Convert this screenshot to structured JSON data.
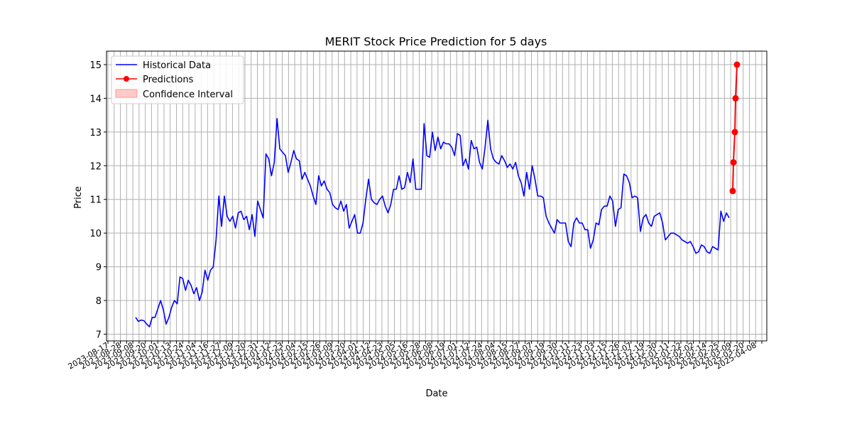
{
  "chart_data": {
    "type": "line",
    "title": "MERIT Stock Price Prediction for 5 days",
    "xlabel": "Date",
    "ylabel": "Price",
    "ylim": [
      6.8,
      15.4
    ],
    "yticks": [
      7,
      8,
      9,
      10,
      11,
      12,
      13,
      14,
      15
    ],
    "grid": true,
    "legend_position": "top-left",
    "x_tick_labels_note": "dense overlapping rotated date labels, 2023-08 through 2025-04",
    "x_first_tick": "2023-08-17",
    "x_last_tick": "2025-04-08",
    "series": [
      {
        "name": "Historical Data",
        "color": "#0000ff",
        "style": "line",
        "values": [
          7.5,
          7.38,
          7.42,
          7.4,
          7.3,
          7.22,
          7.5,
          7.5,
          7.75,
          8.0,
          7.72,
          7.3,
          7.5,
          7.8,
          8.0,
          7.9,
          8.7,
          8.65,
          8.3,
          8.6,
          8.45,
          8.2,
          8.38,
          8.0,
          8.25,
          8.9,
          8.6,
          8.9,
          9.0,
          9.8,
          11.1,
          10.2,
          11.1,
          10.5,
          10.35,
          10.5,
          10.15,
          10.6,
          10.65,
          10.4,
          10.5,
          10.1,
          10.55,
          9.9,
          10.95,
          10.7,
          10.45,
          12.35,
          12.2,
          11.7,
          12.1,
          13.4,
          12.5,
          12.4,
          12.3,
          11.8,
          12.1,
          12.45,
          12.2,
          12.15,
          11.6,
          11.8,
          11.6,
          11.4,
          11.1,
          10.85,
          11.7,
          11.4,
          11.55,
          11.3,
          11.2,
          10.85,
          10.75,
          10.7,
          10.95,
          10.65,
          10.85,
          10.15,
          10.35,
          10.55,
          10.0,
          10.0,
          10.3,
          11.0,
          11.6,
          11.0,
          10.9,
          10.85,
          11.0,
          11.1,
          10.8,
          10.6,
          10.85,
          11.3,
          11.3,
          11.7,
          11.3,
          11.35,
          11.8,
          11.5,
          12.2,
          11.3,
          11.3,
          11.3,
          13.25,
          12.3,
          12.25,
          13.0,
          12.45,
          12.85,
          12.5,
          12.7,
          12.65,
          12.65,
          12.55,
          12.3,
          12.95,
          12.9,
          12.0,
          12.2,
          11.9,
          12.75,
          12.5,
          12.55,
          12.1,
          11.9,
          12.55,
          13.35,
          12.5,
          12.2,
          12.1,
          12.05,
          12.3,
          12.15,
          11.95,
          12.05,
          11.9,
          12.1,
          11.7,
          11.5,
          11.1,
          11.8,
          11.3,
          12.0,
          11.6,
          11.1,
          11.1,
          11.05,
          10.5,
          10.3,
          10.15,
          10.0,
          10.4,
          10.3,
          10.3,
          10.3,
          9.75,
          9.6,
          10.3,
          10.45,
          10.3,
          10.3,
          10.1,
          10.1,
          9.55,
          9.8,
          10.3,
          10.25,
          10.7,
          10.8,
          10.8,
          11.1,
          10.95,
          10.2,
          10.7,
          10.75,
          11.75,
          11.7,
          11.5,
          11.05,
          11.1,
          11.05,
          10.05,
          10.45,
          10.55,
          10.3,
          10.2,
          10.5,
          10.55,
          10.6,
          10.3,
          9.8,
          9.9,
          10.0,
          10.0,
          9.95,
          9.9,
          9.8,
          9.75,
          9.7,
          9.75,
          9.6,
          9.4,
          9.45,
          9.65,
          9.6,
          9.45,
          9.4,
          9.6,
          9.55,
          9.5,
          10.65,
          10.35,
          10.6,
          10.45
        ]
      },
      {
        "name": "Predictions",
        "color": "#ff0000",
        "style": "line-marker",
        "values": [
          11.25,
          12.1,
          13.0,
          14.0,
          15.0
        ]
      },
      {
        "name": "Confidence Interval",
        "color": "#ffb3b3",
        "style": "band",
        "values": []
      }
    ]
  }
}
